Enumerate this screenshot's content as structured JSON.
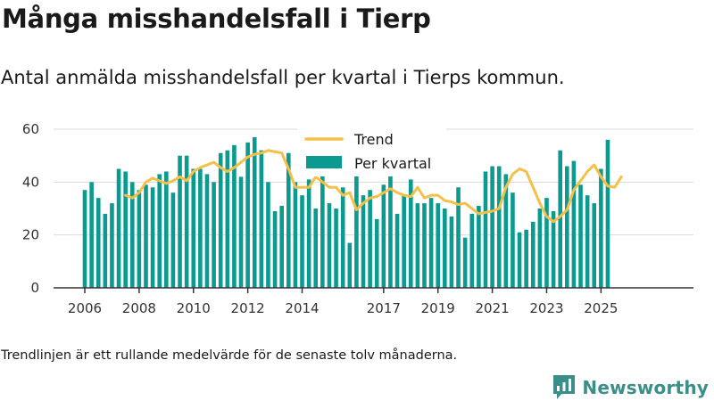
{
  "header": {
    "title": "Många misshandelsfall i Tierp",
    "subtitle": "Antal anmälda misshandelsfall per kvartal i Tierps kommun."
  },
  "footer": {
    "note": "Trendlinjen är ett rullande medelvärde för de senaste tolv månaderna.",
    "brand": "Newsworthy",
    "brand_icon": "newsworthy-logo-icon"
  },
  "colors": {
    "bars": "#0a9a8f",
    "trend": "#f5c04a",
    "grid": "#d9d9d9",
    "brand": "#3a8f88"
  },
  "chart_data": {
    "type": "bar",
    "x_start": "2006 Q1",
    "ylim": [
      0,
      60
    ],
    "yticks": [
      0,
      20,
      40,
      60
    ],
    "xticks": [
      "2006",
      "2008",
      "2010",
      "2012",
      "2014",
      "2017",
      "2019",
      "2021",
      "2023",
      "2025"
    ],
    "grid": true,
    "legend_position": "top-center",
    "series": [
      {
        "name": "Per kvartal",
        "type": "bar",
        "values": [
          37,
          40,
          34,
          28,
          32,
          45,
          44,
          40,
          37,
          39,
          38,
          43,
          44,
          36,
          50,
          50,
          45,
          45,
          43,
          40,
          51,
          52,
          54,
          42,
          55,
          57,
          52,
          40,
          29,
          31,
          51,
          40,
          35,
          41,
          30,
          47,
          32,
          30,
          38,
          17,
          45,
          35,
          37,
          26,
          39,
          47,
          28,
          35,
          41,
          32,
          32,
          34,
          32,
          30,
          27,
          38,
          19,
          28,
          31,
          44,
          46,
          46,
          43,
          36,
          21,
          22,
          25,
          30,
          34,
          29,
          52,
          46,
          48,
          39,
          35,
          32,
          45,
          56
        ]
      },
      {
        "name": "Trend",
        "type": "line",
        "start_index": 6,
        "values": [
          35,
          34,
          36,
          40,
          41.5,
          40.5,
          39.5,
          40.5,
          42,
          40.5,
          44,
          45.5,
          46.5,
          47.5,
          45.5,
          44,
          45.5,
          47.5,
          49.5,
          50.5,
          51,
          52,
          51.5,
          51,
          45,
          38,
          38,
          38,
          42,
          40,
          38,
          38,
          35,
          36,
          29.5,
          32,
          34,
          34.5,
          36,
          37.5,
          36,
          35,
          34.5,
          38,
          34,
          35,
          35,
          33,
          32.5,
          31.5,
          32,
          30,
          28,
          28.5,
          29,
          30,
          38,
          43,
          45,
          44,
          38,
          32,
          27,
          25,
          27,
          29.5,
          37,
          40.5,
          44,
          46.5,
          42,
          38.5,
          38,
          42
        ]
      }
    ]
  }
}
